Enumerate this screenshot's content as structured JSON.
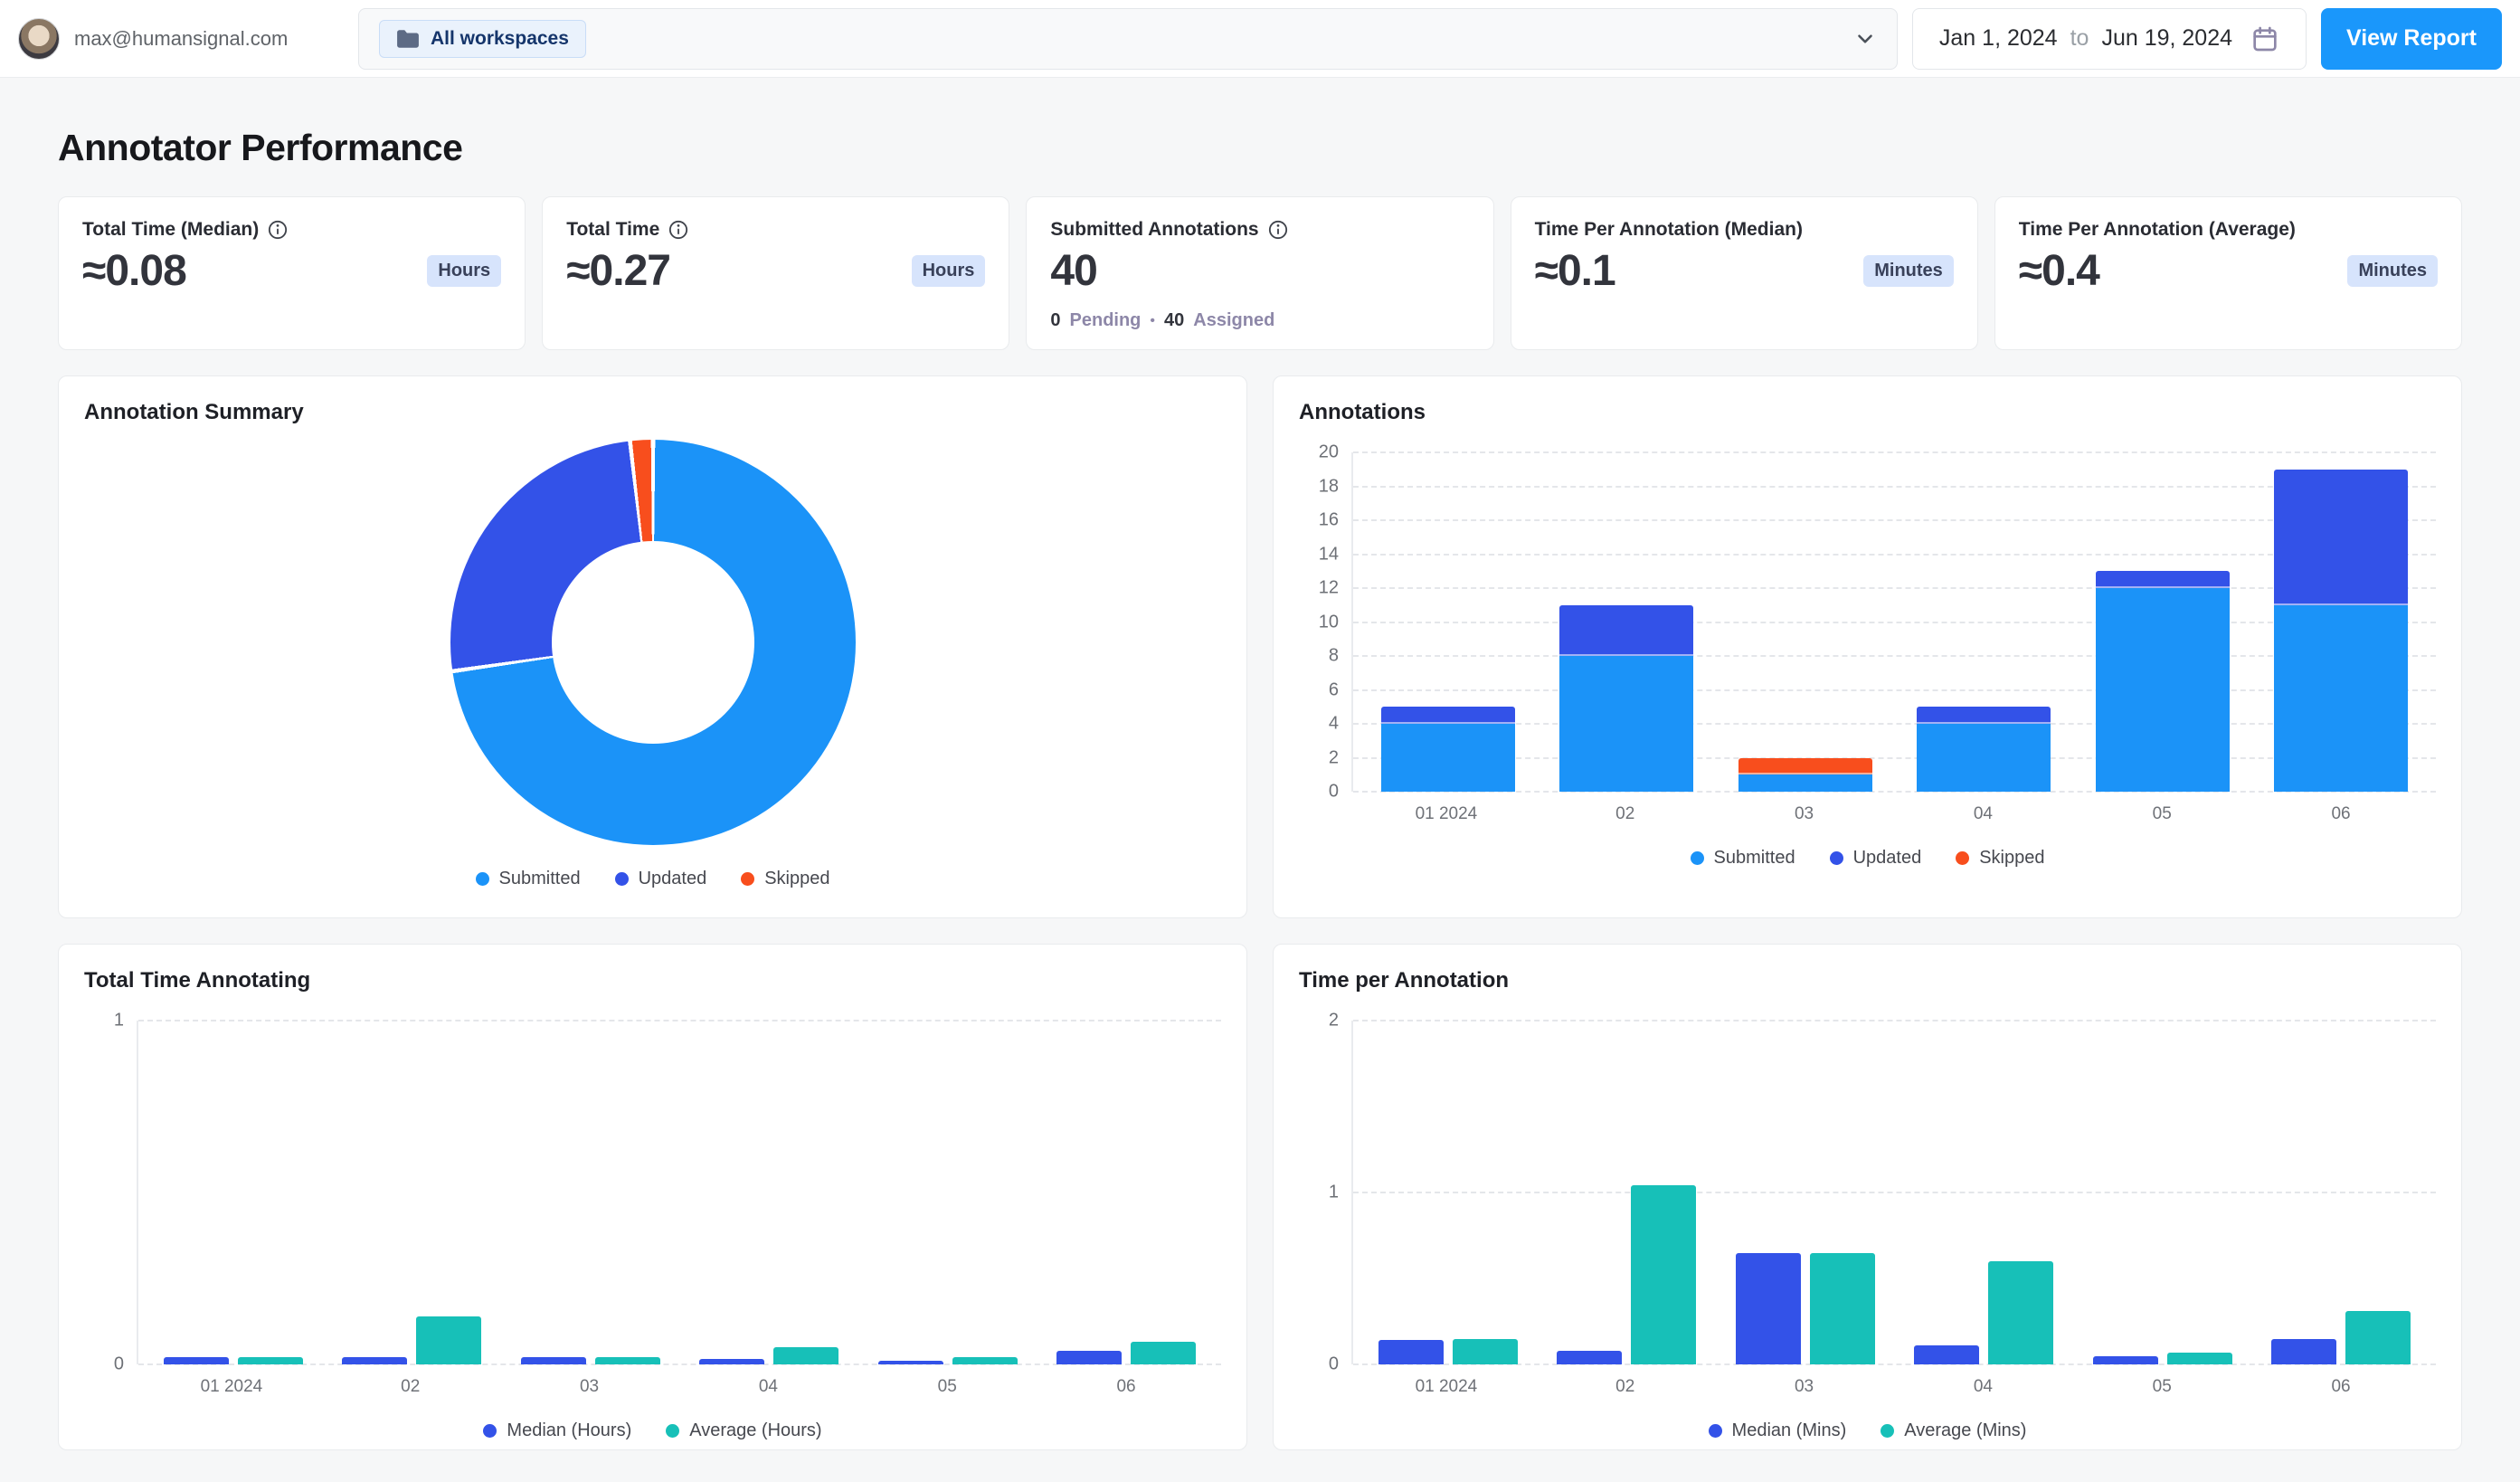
{
  "topbar": {
    "user_email": "max@humansignal.com",
    "workspace_filter": {
      "label": "All workspaces",
      "icon": "folder-icon"
    },
    "date_range": {
      "start": "Jan 1, 2024",
      "separator": "to",
      "end": "Jun 19, 2024",
      "icon": "calendar-icon"
    },
    "view_report_label": "View Report"
  },
  "page_title": "Annotator Performance",
  "stat_cards": [
    {
      "title": "Total Time (Median)",
      "info_icon": true,
      "value": "≈0.08",
      "unit": "Hours"
    },
    {
      "title": "Total Time",
      "info_icon": true,
      "value": "≈0.27",
      "unit": "Hours"
    },
    {
      "title": "Submitted Annotations",
      "info_icon": true,
      "value": "40",
      "footer": {
        "pending_count": "0",
        "pending_label": "Pending",
        "separator": "•",
        "assigned_count": "40",
        "assigned_label": "Assigned"
      }
    },
    {
      "title": "Time Per Annotation (Median)",
      "info_icon": false,
      "value": "≈0.1",
      "unit": "Minutes"
    },
    {
      "title": "Time Per Annotation (Average)",
      "info_icon": false,
      "value": "≈0.4",
      "unit": "Minutes"
    }
  ],
  "colors": {
    "submitted": "#1b93f8",
    "updated": "#3352e8",
    "skipped": "#f84e1d",
    "teal": "#17c0b8",
    "accent_button": "#1a97fb",
    "badge_bg": "#d7e4fc"
  },
  "chart_data": [
    {
      "type": "pie",
      "donut": true,
      "title": "Annotation Summary",
      "labels": [
        "Submitted",
        "Updated",
        "Skipped"
      ],
      "values": [
        40,
        14,
        1
      ],
      "colors": [
        "#1b93f8",
        "#3352e8",
        "#f84e1d"
      ],
      "legend_position": "bottom"
    },
    {
      "type": "bar",
      "stacked": true,
      "title": "Annotations",
      "categories": [
        "01 2024",
        "02",
        "03",
        "04",
        "05",
        "06"
      ],
      "series": [
        {
          "name": "Submitted",
          "color": "#1b93f8",
          "values": [
            4,
            8,
            1,
            4,
            12,
            11
          ]
        },
        {
          "name": "Updated",
          "color": "#3352e8",
          "values": [
            1,
            3,
            0,
            1,
            1,
            8
          ]
        },
        {
          "name": "Skipped",
          "color": "#f84e1d",
          "values": [
            0,
            0,
            1,
            0,
            0,
            0
          ]
        }
      ],
      "ylim": [
        0,
        20
      ],
      "yticks": [
        0,
        2,
        4,
        6,
        8,
        10,
        12,
        14,
        16,
        18,
        20
      ],
      "grid": true,
      "legend_position": "bottom"
    },
    {
      "type": "bar",
      "stacked": false,
      "title": "Total Time Annotating",
      "categories": [
        "01 2024",
        "02",
        "03",
        "04",
        "05",
        "06"
      ],
      "series": [
        {
          "name": "Median (Hours)",
          "color": "#3352e8",
          "values": [
            0.02,
            0.02,
            0.02,
            0.015,
            0.01,
            0.04
          ]
        },
        {
          "name": "Average (Hours)",
          "color": "#17c0b8",
          "values": [
            0.02,
            0.14,
            0.02,
            0.05,
            0.02,
            0.065
          ]
        }
      ],
      "ylim": [
        0,
        1
      ],
      "yticks": [
        0,
        1
      ],
      "grid": true,
      "legend_position": "bottom"
    },
    {
      "type": "bar",
      "stacked": false,
      "title": "Time per Annotation",
      "categories": [
        "01 2024",
        "02",
        "03",
        "04",
        "05",
        "06"
      ],
      "series": [
        {
          "name": "Median (Mins)",
          "color": "#3352e8",
          "values": [
            0.14,
            0.08,
            0.65,
            0.11,
            0.05,
            0.15
          ]
        },
        {
          "name": "Average (Mins)",
          "color": "#17c0b8",
          "values": [
            0.15,
            1.04,
            0.65,
            0.6,
            0.07,
            0.31
          ]
        }
      ],
      "ylim": [
        0,
        2
      ],
      "yticks": [
        0,
        1,
        2
      ],
      "grid": true,
      "legend_position": "bottom"
    }
  ]
}
